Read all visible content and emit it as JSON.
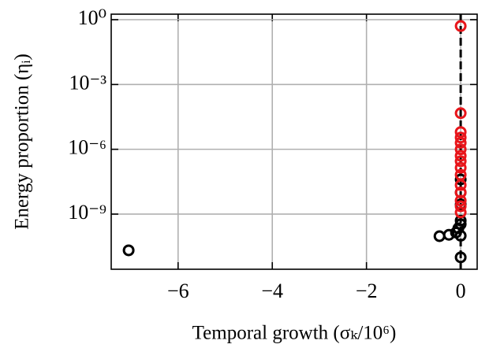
{
  "chart_data": {
    "type": "scatter",
    "xlabel": "Temporal growth (σₖ/10⁶)",
    "ylabel": "Energy proportion (ηᵢ)",
    "xlim": [
      -7.42,
      0.35
    ],
    "xticks": [
      {
        "value": -6,
        "label": "−6"
      },
      {
        "value": -4,
        "label": "−4"
      },
      {
        "value": -2,
        "label": "−2"
      },
      0
    ],
    "ylim": [
      2.8e-12,
      1.8
    ],
    "yticks": [
      {
        "value": 1,
        "label": "10⁰"
      },
      {
        "value": 0.001,
        "label": "10⁻³"
      },
      {
        "value": 1e-06,
        "label": "10⁻⁶"
      },
      {
        "value": 1e-09,
        "label": "10⁻⁹"
      }
    ],
    "ylog": true,
    "grid": true,
    "reference_line": {
      "x": 0,
      "color": "#000000"
    },
    "series": [
      {
        "color": "#000000",
        "x": [
          -7.05,
          -0.45,
          -0.25,
          -0.1,
          -0.05,
          0,
          0,
          0,
          0,
          0,
          0,
          0
        ],
        "values": [
          2.1e-11,
          9.5e-11,
          1.1e-10,
          1.4e-10,
          2.2e-10,
          3.4e-10,
          1e-10,
          1e-11,
          4e-08,
          1e-08,
          2.8e-09,
          5e-10
        ]
      },
      {
        "color": "#e8151a",
        "x": [
          0,
          0,
          0,
          0,
          0,
          0,
          0,
          0,
          0,
          0,
          0,
          0,
          0,
          0,
          0
        ],
        "values": [
          0.51,
          4.7e-05,
          6.3e-06,
          3.5e-06,
          2e-06,
          1e-06,
          5e-07,
          2.8e-07,
          1.4e-07,
          6.6e-08,
          2.2e-08,
          1e-08,
          4.2e-09,
          2.3e-09,
          1.2e-09
        ]
      }
    ]
  }
}
